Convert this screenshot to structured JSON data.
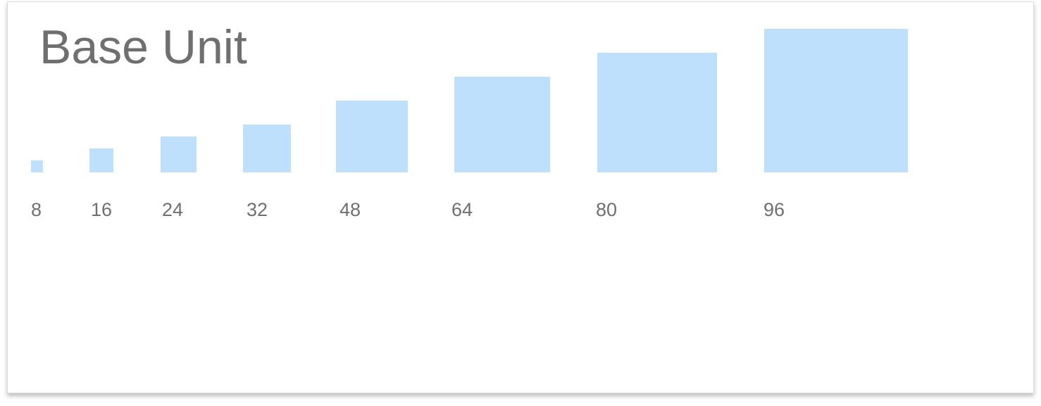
{
  "title": "Base Unit",
  "swatch_color": "#bfe0fc",
  "units": [
    {
      "label": "8",
      "value": 8
    },
    {
      "label": "16",
      "value": 16
    },
    {
      "label": "24",
      "value": 24
    },
    {
      "label": "32",
      "value": 32
    },
    {
      "label": "48",
      "value": 48
    },
    {
      "label": "64",
      "value": 64
    },
    {
      "label": "80",
      "value": 80
    },
    {
      "label": "96",
      "value": 96
    }
  ]
}
